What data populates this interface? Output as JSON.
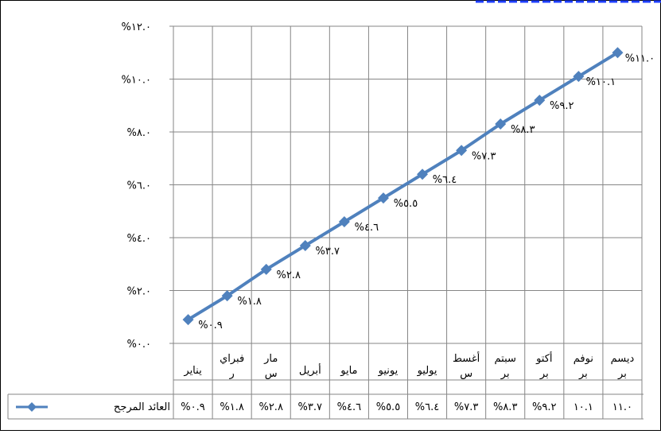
{
  "chart_data": {
    "type": "line",
    "title_fragment": "",
    "categories": [
      [
        "يناير"
      ],
      [
        "فبراي",
        "ر"
      ],
      [
        "مار",
        "س"
      ],
      [
        "أبريل"
      ],
      [
        "مايو"
      ],
      [
        "يونيو"
      ],
      [
        "يوليو"
      ],
      [
        "أغسط",
        "س"
      ],
      [
        "سبتم",
        "بر"
      ],
      [
        "أكتو",
        "بر"
      ],
      [
        "نوفم",
        "بر"
      ],
      [
        "ديسم",
        "بر"
      ]
    ],
    "series": [
      {
        "name": "العائد المرجح",
        "values": [
          0.9,
          1.8,
          2.8,
          3.7,
          4.6,
          5.5,
          6.4,
          7.3,
          8.3,
          9.2,
          10.1,
          11.0
        ],
        "data_labels": [
          "%٠.٩",
          "%١.٨",
          "%٢.٨",
          "%٣.٧",
          "%٤.٦",
          "%٥.٥",
          "%٦.٤",
          "%٧.٣",
          "%٨.٣",
          "%٩.٢",
          "%١٠.١",
          "%١١.٠"
        ],
        "table_values": [
          "%٠.٩",
          "%١.٨",
          "%٢.٨",
          "%٣.٧",
          "%٤.٦",
          "%٥.٥",
          "%٦.٤",
          "%٧.٣",
          "%٨.٣",
          "%٩.٢",
          "١٠.١",
          "١١.٠"
        ],
        "color": "#4F81BD"
      }
    ],
    "y_ticks": [
      {
        "value": 0,
        "label": "%٠.٠"
      },
      {
        "value": 2,
        "label": "%٢.٠"
      },
      {
        "value": 4,
        "label": "%٤.٠"
      },
      {
        "value": 6,
        "label": "%٦.٠"
      },
      {
        "value": 8,
        "label": "%٨.٠"
      },
      {
        "value": 10,
        "label": "%١٠.٠"
      },
      {
        "value": 12,
        "label": "%١٢.٠"
      }
    ],
    "ylim": [
      0,
      12
    ],
    "grid": true,
    "legend": "data-table-left",
    "gridline_color": "#868686",
    "header_color": "#1F3FFF"
  }
}
